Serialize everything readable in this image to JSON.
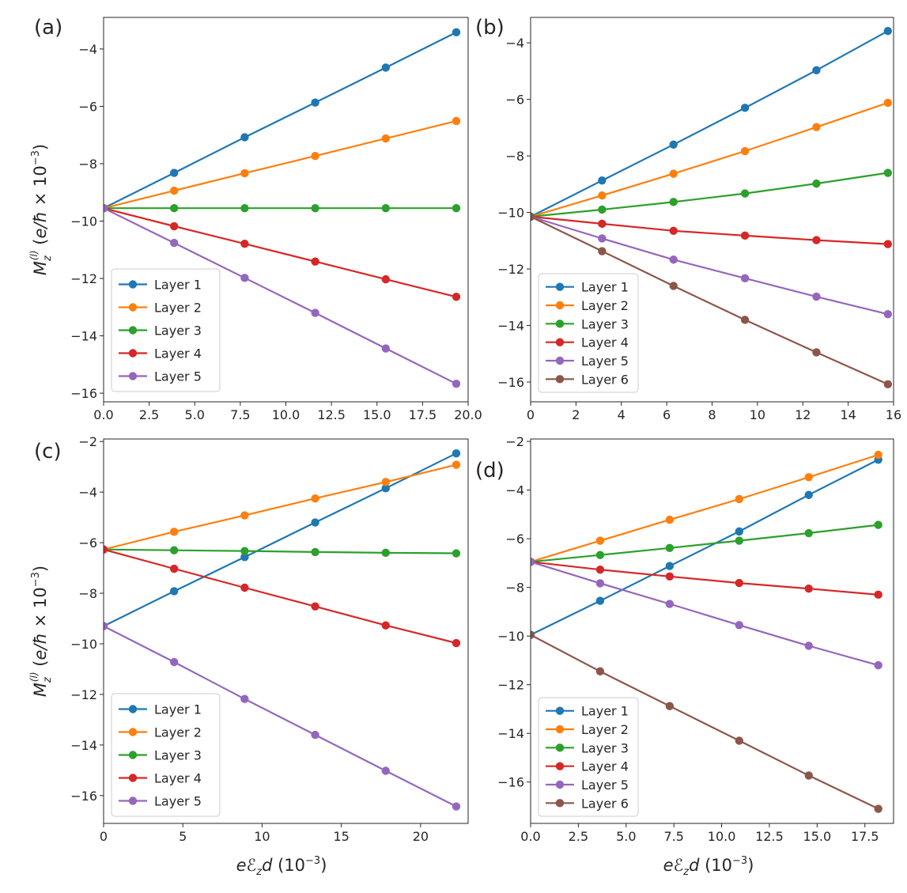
{
  "figure": {
    "xlabel": "eℰzd (10⁻³)",
    "ylabel": "Mz(l) (e/ħ × 10⁻³)"
  },
  "colors": {
    "Layer 1": "#1f77b4",
    "Layer 2": "#ff7f0e",
    "Layer 3": "#2ca02c",
    "Layer 4": "#d62728",
    "Layer 5": "#9467bd",
    "Layer 6": "#8c564b"
  },
  "chart_data": [
    {
      "type": "line",
      "panel": "(a)",
      "xlim": [
        0,
        20
      ],
      "ylim": [
        -16.3,
        -2.9
      ],
      "xticks": [
        0,
        2.5,
        5,
        7.5,
        10,
        12.5,
        15,
        17.5,
        20
      ],
      "xtick_labels": [
        "0.0",
        "2.5",
        "5.0",
        "7.5",
        "10.0",
        "12.5",
        "15.0",
        "17.5",
        "20.0"
      ],
      "yticks": [
        -16,
        -14,
        -12,
        -10,
        -8,
        -6,
        -4
      ],
      "ytick_labels": [
        "−16",
        "−14",
        "−12",
        "−10",
        "−8",
        "−6",
        "−4"
      ],
      "legend_position": "lower-left",
      "x": [
        0,
        3.87,
        7.74,
        11.61,
        15.48,
        19.35
      ],
      "series": [
        {
          "name": "Layer 1",
          "values": [
            -9.55,
            -8.32,
            -7.08,
            -5.87,
            -4.65,
            -3.42
          ]
        },
        {
          "name": "Layer 2",
          "values": [
            -9.55,
            -8.94,
            -8.33,
            -7.73,
            -7.12,
            -6.51
          ]
        },
        {
          "name": "Layer 3",
          "values": [
            -9.55,
            -9.55,
            -9.55,
            -9.55,
            -9.55,
            -9.55
          ]
        },
        {
          "name": "Layer 4",
          "values": [
            -9.55,
            -10.18,
            -10.79,
            -11.41,
            -12.03,
            -12.64
          ]
        },
        {
          "name": "Layer 5",
          "values": [
            -9.55,
            -10.76,
            -11.98,
            -13.2,
            -14.44,
            -15.67
          ]
        }
      ]
    },
    {
      "type": "line",
      "panel": "(b)",
      "xlim": [
        0,
        16
      ],
      "ylim": [
        -16.7,
        -3.1
      ],
      "xticks": [
        0,
        2,
        4,
        6,
        8,
        10,
        12,
        14,
        16
      ],
      "xtick_labels": [
        "0",
        "2",
        "4",
        "6",
        "8",
        "10",
        "12",
        "14",
        "16"
      ],
      "yticks": [
        -16,
        -14,
        -12,
        -10,
        -8,
        -6,
        -4
      ],
      "ytick_labels": [
        "−16",
        "−14",
        "−12",
        "−10",
        "−8",
        "−6",
        "−4"
      ],
      "legend_position": "lower-left",
      "x": [
        0,
        3.15,
        6.3,
        9.45,
        12.6,
        15.75
      ],
      "series": [
        {
          "name": "Layer 1",
          "values": [
            -10.15,
            -8.87,
            -7.6,
            -6.3,
            -4.97,
            -3.58
          ]
        },
        {
          "name": "Layer 2",
          "values": [
            -10.15,
            -9.4,
            -8.63,
            -7.83,
            -6.98,
            -6.12
          ]
        },
        {
          "name": "Layer 3",
          "values": [
            -10.15,
            -9.9,
            -9.63,
            -9.33,
            -8.98,
            -8.6
          ]
        },
        {
          "name": "Layer 4",
          "values": [
            -10.15,
            -10.4,
            -10.65,
            -10.82,
            -10.98,
            -11.12
          ]
        },
        {
          "name": "Layer 5",
          "values": [
            -10.15,
            -10.92,
            -11.67,
            -12.33,
            -12.98,
            -13.6
          ]
        },
        {
          "name": "Layer 6",
          "values": [
            -10.15,
            -11.37,
            -12.6,
            -13.8,
            -14.95,
            -16.08
          ]
        }
      ]
    },
    {
      "type": "line",
      "panel": "(c)",
      "xlim": [
        0,
        23
      ],
      "ylim": [
        -17.1,
        -1.9
      ],
      "xticks": [
        0,
        5,
        10,
        15,
        20
      ],
      "xtick_labels": [
        "0",
        "5",
        "10",
        "15",
        "20"
      ],
      "yticks": [
        -16,
        -14,
        -12,
        -10,
        -8,
        -6,
        -4,
        -2
      ],
      "ytick_labels": [
        "−16",
        "−14",
        "−12",
        "−10",
        "−8",
        "−6",
        "−4",
        "−2"
      ],
      "legend_position": "lower-left",
      "x": [
        0,
        4.45,
        8.9,
        13.35,
        17.8,
        22.25
      ],
      "series": [
        {
          "name": "Layer 1",
          "values": [
            -9.3,
            -7.92,
            -6.57,
            -5.2,
            -3.85,
            -2.47
          ]
        },
        {
          "name": "Layer 2",
          "values": [
            -6.27,
            -5.57,
            -4.92,
            -4.25,
            -3.6,
            -2.92
          ]
        },
        {
          "name": "Layer 3",
          "values": [
            -6.27,
            -6.3,
            -6.33,
            -6.37,
            -6.4,
            -6.42
          ]
        },
        {
          "name": "Layer 4",
          "values": [
            -6.27,
            -7.03,
            -7.78,
            -8.52,
            -9.27,
            -9.97
          ]
        },
        {
          "name": "Layer 5",
          "values": [
            -9.3,
            -10.72,
            -12.18,
            -13.6,
            -15.02,
            -16.43
          ]
        }
      ]
    },
    {
      "type": "line",
      "panel": "(d)",
      "xlim": [
        0,
        19
      ],
      "ylim": [
        -17.7,
        -1.9
      ],
      "xticks": [
        0,
        2.5,
        5,
        7.5,
        10,
        12.5,
        15,
        17.5
      ],
      "xtick_labels": [
        "0.0",
        "2.5",
        "5.0",
        "7.5",
        "10.0",
        "12.5",
        "15.0",
        "17.5"
      ],
      "yticks": [
        -16,
        -14,
        -12,
        -10,
        -8,
        -6,
        -4,
        -2
      ],
      "ytick_labels": [
        "−16",
        "−14",
        "−12",
        "−10",
        "−8",
        "−6",
        "−4",
        "−2"
      ],
      "legend_position": "lower-left",
      "x": [
        0,
        3.64,
        7.28,
        10.92,
        14.56,
        18.2
      ],
      "series": [
        {
          "name": "Layer 1",
          "values": [
            -9.95,
            -8.55,
            -7.12,
            -5.7,
            -4.2,
            -2.75
          ]
        },
        {
          "name": "Layer 2",
          "values": [
            -6.95,
            -6.08,
            -5.22,
            -4.37,
            -3.47,
            -2.55
          ]
        },
        {
          "name": "Layer 3",
          "values": [
            -6.95,
            -6.67,
            -6.38,
            -6.08,
            -5.77,
            -5.43
          ]
        },
        {
          "name": "Layer 4",
          "values": [
            -6.95,
            -7.27,
            -7.55,
            -7.82,
            -8.05,
            -8.3
          ]
        },
        {
          "name": "Layer 5",
          "values": [
            -6.95,
            -7.83,
            -8.68,
            -9.55,
            -10.4,
            -11.2
          ]
        },
        {
          "name": "Layer 6",
          "values": [
            -9.95,
            -11.45,
            -12.88,
            -14.3,
            -15.73,
            -17.1
          ]
        }
      ]
    }
  ]
}
